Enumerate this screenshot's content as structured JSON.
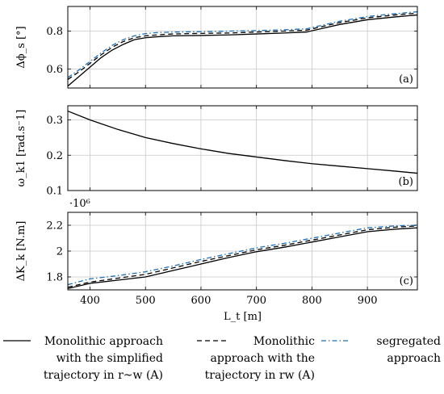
{
  "chart_data": [
    {
      "type": "line",
      "panel_label": "(a)",
      "ylabel": "Δϕ_s [°]",
      "xlim": [
        360,
        990
      ],
      "ylim": [
        0.5,
        0.93
      ],
      "yticks": [
        0.6,
        0.8
      ],
      "ytick_labels": [
        "0.6",
        "0.8"
      ],
      "grid": true,
      "series": [
        {
          "style": "solid",
          "x": [
            360,
            380,
            400,
            420,
            440,
            460,
            480,
            500,
            520,
            550,
            600,
            650,
            700,
            750,
            790,
            820,
            850,
            900,
            950,
            990
          ],
          "y": [
            0.51,
            0.56,
            0.61,
            0.66,
            0.7,
            0.73,
            0.755,
            0.765,
            0.77,
            0.775,
            0.777,
            0.78,
            0.785,
            0.79,
            0.795,
            0.815,
            0.835,
            0.86,
            0.875,
            0.885
          ]
        },
        {
          "style": "dashed",
          "x": [
            360,
            380,
            400,
            420,
            440,
            460,
            480,
            500,
            520,
            550,
            600,
            650,
            700,
            750,
            790,
            820,
            850,
            900,
            950,
            990
          ],
          "y": [
            0.545,
            0.585,
            0.63,
            0.675,
            0.715,
            0.745,
            0.765,
            0.775,
            0.78,
            0.785,
            0.788,
            0.79,
            0.795,
            0.8,
            0.805,
            0.825,
            0.845,
            0.87,
            0.885,
            0.895
          ]
        },
        {
          "style": "dashdot",
          "x": [
            360,
            380,
            400,
            420,
            440,
            460,
            480,
            500,
            520,
            550,
            600,
            650,
            700,
            750,
            790,
            820,
            850,
            900,
            950,
            990
          ],
          "y": [
            0.555,
            0.595,
            0.64,
            0.685,
            0.725,
            0.755,
            0.775,
            0.787,
            0.792,
            0.795,
            0.797,
            0.8,
            0.803,
            0.807,
            0.812,
            0.832,
            0.852,
            0.877,
            0.892,
            0.902
          ]
        }
      ]
    },
    {
      "type": "line",
      "panel_label": "(b)",
      "ylabel": "ω_k1 [rad.s⁻1]",
      "xlim": [
        360,
        990
      ],
      "ylim": [
        0.1,
        0.34
      ],
      "yticks": [
        0.1,
        0.2,
        0.3
      ],
      "ytick_labels": [
        "0.1",
        "0.2",
        "0.3"
      ],
      "grid": true,
      "series": [
        {
          "style": "solid",
          "x": [
            360,
            400,
            450,
            500,
            550,
            600,
            650,
            700,
            750,
            800,
            850,
            900,
            950,
            990
          ],
          "y": [
            0.325,
            0.3,
            0.273,
            0.25,
            0.233,
            0.218,
            0.205,
            0.195,
            0.185,
            0.176,
            0.169,
            0.162,
            0.155,
            0.149
          ]
        }
      ]
    },
    {
      "type": "line",
      "panel_label": "(c)",
      "ylabel": "ΔK_k [N.m]",
      "y_multiplier": "·10⁶",
      "xlabel": "L_t [m]",
      "xlim": [
        360,
        990
      ],
      "ylim": [
        1.7,
        2.3
      ],
      "xticks": [
        400,
        500,
        600,
        700,
        800,
        900
      ],
      "xtick_labels": [
        "400",
        "500",
        "600",
        "700",
        "800",
        "900"
      ],
      "yticks": [
        1.8,
        2.0,
        2.2
      ],
      "ytick_labels": [
        "1.8",
        "2",
        "2.2"
      ],
      "grid": true,
      "series": [
        {
          "style": "solid",
          "x": [
            360,
            400,
            450,
            500,
            550,
            600,
            650,
            700,
            750,
            800,
            850,
            900,
            950,
            990
          ],
          "y": [
            1.71,
            1.75,
            1.775,
            1.8,
            1.85,
            1.9,
            1.95,
            1.995,
            2.03,
            2.07,
            2.11,
            2.15,
            2.17,
            2.18
          ]
        },
        {
          "style": "dashed",
          "x": [
            360,
            400,
            450,
            500,
            550,
            600,
            650,
            700,
            750,
            800,
            850,
            900,
            950,
            990
          ],
          "y": [
            1.72,
            1.76,
            1.79,
            1.82,
            1.87,
            1.92,
            1.965,
            2.01,
            2.045,
            2.085,
            2.125,
            2.165,
            2.185,
            2.195
          ]
        },
        {
          "style": "dashdot",
          "x": [
            360,
            400,
            450,
            500,
            550,
            600,
            650,
            700,
            750,
            800,
            850,
            900,
            950,
            990
          ],
          "y": [
            1.74,
            1.785,
            1.81,
            1.84,
            1.885,
            1.935,
            1.98,
            2.025,
            2.06,
            2.1,
            2.14,
            2.18,
            2.195,
            2.2
          ]
        }
      ]
    }
  ],
  "legend": {
    "placement": "bottom",
    "entries": [
      {
        "style": "solid",
        "lines": [
          "Monolithic approach",
          "with the simplified",
          "trajectory in r~w (A)"
        ]
      },
      {
        "style": "dashed",
        "lines": [
          "Monolithic",
          "approach with the",
          "trajectory in rw (A)"
        ]
      },
      {
        "style": "dashdot",
        "lines": [
          "segregated",
          "approach"
        ]
      }
    ]
  },
  "colors": {
    "line": "#000000",
    "dashdot": "#1f6fb4",
    "grid": "#c8c8c8",
    "axis": "#000000"
  }
}
